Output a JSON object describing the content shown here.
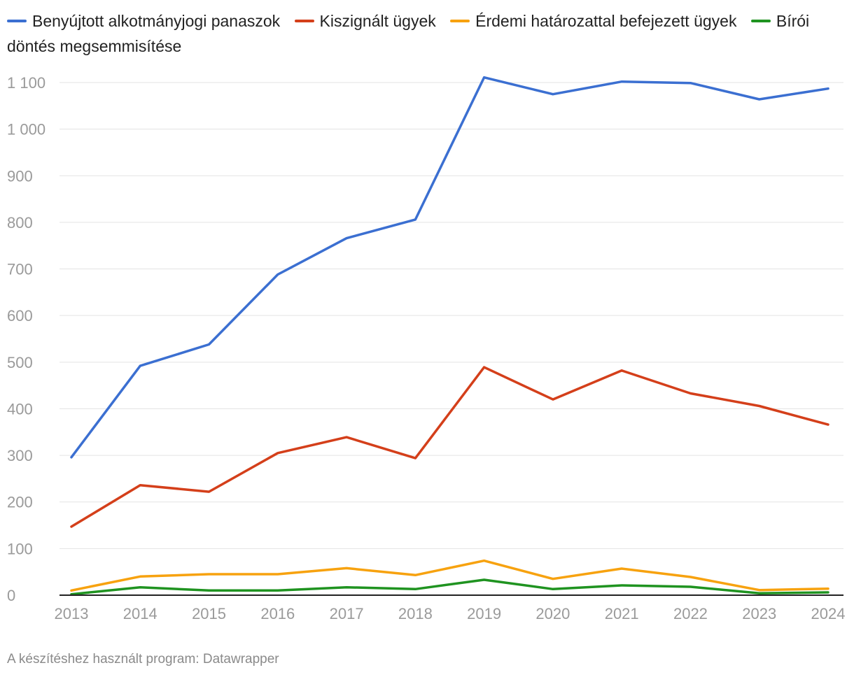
{
  "chart_data": {
    "type": "line",
    "title": "",
    "xlabel": "",
    "ylabel": "",
    "x": [
      "2013",
      "2014",
      "2015",
      "2016",
      "2017",
      "2018",
      "2019",
      "2020",
      "2021",
      "2022",
      "2023",
      "2024"
    ],
    "yticks": [
      0,
      100,
      200,
      300,
      400,
      500,
      600,
      700,
      800,
      900,
      1000,
      1100
    ],
    "ytick_labels": [
      "0",
      "100",
      "200",
      "300",
      "400",
      "500",
      "600",
      "700",
      "800",
      "900",
      "1 000",
      "1 100"
    ],
    "ylim": [
      0,
      1100
    ],
    "grid": true,
    "legend_position": "top",
    "series": [
      {
        "name": "Benyújtott alkotmányjogi panaszok",
        "color": "#3b6fd1",
        "values": [
          296,
          492,
          538,
          688,
          766,
          806,
          1111,
          1075,
          1102,
          1099,
          1064,
          1087
        ]
      },
      {
        "name": "Kiszignált ügyek",
        "color": "#d43f1a",
        "values": [
          147,
          236,
          222,
          305,
          339,
          294,
          489,
          420,
          482,
          433,
          406,
          366
        ]
      },
      {
        "name": "Érdemi határozattal befejezett ügyek",
        "color": "#f7a20f",
        "values": [
          10,
          40,
          45,
          45,
          58,
          43,
          74,
          35,
          57,
          39,
          11,
          14
        ]
      },
      {
        "name": "Bírói döntés megsemmisítése",
        "color": "#1f9320",
        "values": [
          2,
          17,
          10,
          10,
          17,
          13,
          33,
          13,
          21,
          18,
          4,
          6
        ]
      }
    ]
  },
  "footer": {
    "text": "A készítéshez használt program: Datawrapper"
  }
}
